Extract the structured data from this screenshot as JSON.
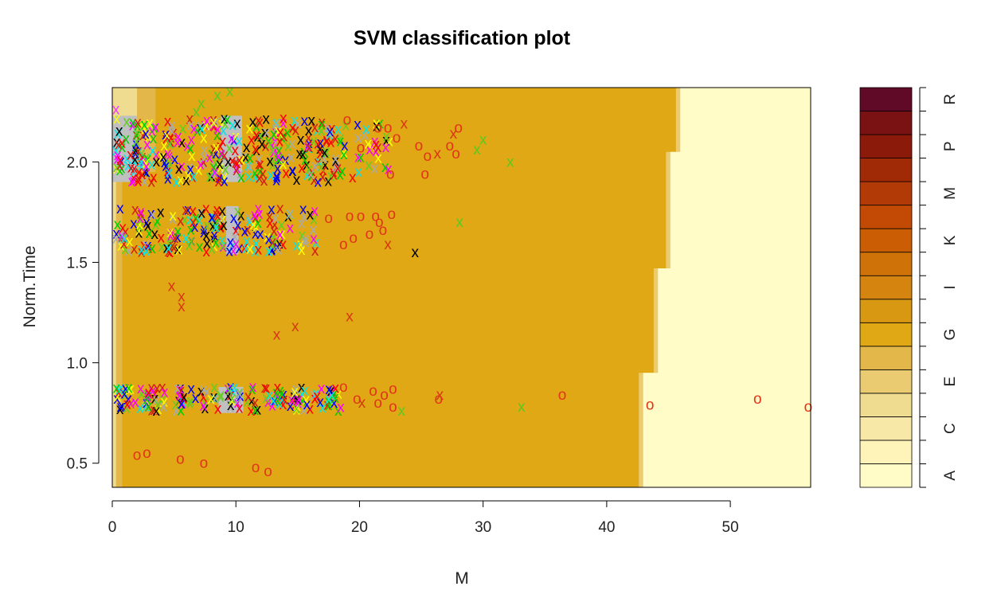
{
  "chart_data": {
    "type": "scatter",
    "title": "SVM classification plot",
    "xlabel": "M",
    "ylabel": "Norm.Time",
    "xlim": [
      0,
      56.5
    ],
    "ylim": [
      0.38,
      2.37
    ],
    "xticks": [
      "0",
      "10",
      "20",
      "30",
      "40",
      "50"
    ],
    "xtick_values": [
      0,
      10,
      20,
      30,
      40,
      50
    ],
    "yticks": [
      "0.5",
      "1.0",
      "1.5",
      "2.0"
    ],
    "ytick_values": [
      0.5,
      1.0,
      1.5,
      2.0
    ],
    "grid": false,
    "legend_position": "right",
    "legend_labels": [
      "A",
      "C",
      "E",
      "G",
      "I",
      "K",
      "M",
      "P",
      "R"
    ],
    "legend_colors": [
      "#FFFCC8",
      "#FEF3B9",
      "#F8E8A7",
      "#F0DC90",
      "#EACB72",
      "#E4B74A",
      "#DFA814",
      "#D99812",
      "#D68410",
      "#CF7309",
      "#CB5E04",
      "#C34A04",
      "#B23A06",
      "#A02A06",
      "#8C1A0A",
      "#7A1214",
      "#600A28"
    ],
    "decision_regions": {
      "colors": {
        "A": "#FFFCC8",
        "E": "#F0DC90",
        "I": "#DFA814",
        "band_light": "#EACB72",
        "band_mid": "#E4B74A",
        "gray": "#C0C0C0"
      },
      "I_to_A_boundary": [
        {
          "y": 0.38,
          "x": 42.6
        },
        {
          "y": 0.95,
          "x": 42.6
        },
        {
          "y": 0.95,
          "x": 43.8
        },
        {
          "y": 1.47,
          "x": 43.8
        },
        {
          "y": 1.47,
          "x": 44.8
        },
        {
          "y": 2.05,
          "x": 44.8
        },
        {
          "y": 2.05,
          "x": 45.6
        },
        {
          "y": 2.37,
          "x": 45.6
        }
      ],
      "left_bands": {
        "outer": [
          {
            "y": 0.38,
            "x": 0.8
          },
          {
            "y": 1.95,
            "x": 0.8
          },
          {
            "y": 1.95,
            "x": 3.5
          },
          {
            "y": 2.37,
            "x": 3.5
          }
        ],
        "inner": [
          {
            "y": 0.38,
            "x": 0.3
          },
          {
            "y": 1.95,
            "x": 0.3
          },
          {
            "y": 1.95,
            "x": 2.0
          },
          {
            "y": 2.37,
            "x": 2.0
          }
        ]
      },
      "gray_bars": [
        {
          "x0": 0.0,
          "x1": 2.0,
          "y0": 1.9,
          "y1": 2.23
        },
        {
          "x0": 8.8,
          "x1": 10.5,
          "y0": 1.9,
          "y1": 2.23
        },
        {
          "x0": 9.2,
          "x1": 10.2,
          "y0": 1.54,
          "y1": 1.78
        },
        {
          "x0": 8.6,
          "x1": 10.6,
          "y0": 0.75,
          "y1": 0.88
        }
      ]
    },
    "series": [
      {
        "name": "support_vectors",
        "symbol": "x",
        "points": [
          {
            "x": 9.5,
            "y": 2.35
          },
          {
            "x": 8.5,
            "y": 2.33
          },
          {
            "x": 7.2,
            "y": 2.29
          },
          {
            "x": 6.8,
            "y": 2.25
          },
          {
            "x": 0.3,
            "y": 2.26
          },
          {
            "x": 32.2,
            "y": 2.0
          },
          {
            "x": 28.1,
            "y": 1.7
          },
          {
            "x": 24.5,
            "y": 1.55
          },
          {
            "x": 23.4,
            "y": 0.76
          },
          {
            "x": 33.1,
            "y": 0.78
          },
          {
            "x": 4.8,
            "y": 1.38
          },
          {
            "x": 5.6,
            "y": 1.33
          },
          {
            "x": 5.6,
            "y": 1.28
          },
          {
            "x": 13.3,
            "y": 1.14
          },
          {
            "x": 14.8,
            "y": 1.18
          },
          {
            "x": 19.2,
            "y": 1.23
          },
          {
            "x": 30.0,
            "y": 2.11
          },
          {
            "x": 29.5,
            "y": 2.06
          },
          {
            "x": 27.6,
            "y": 2.14
          },
          {
            "x": 26.3,
            "y": 2.04
          },
          {
            "x": 23.6,
            "y": 2.19
          },
          {
            "x": 22.3,
            "y": 1.59
          },
          {
            "x": 26.5,
            "y": 0.84
          },
          {
            "x": 20.2,
            "y": 0.8
          }
        ]
      },
      {
        "name": "data_points",
        "symbol": "o",
        "points": [
          {
            "x": 2.0,
            "y": 0.54
          },
          {
            "x": 2.8,
            "y": 0.55
          },
          {
            "x": 5.5,
            "y": 0.52
          },
          {
            "x": 7.4,
            "y": 0.5
          },
          {
            "x": 11.6,
            "y": 0.48
          },
          {
            "x": 12.6,
            "y": 0.46
          },
          {
            "x": 36.4,
            "y": 0.84
          },
          {
            "x": 43.5,
            "y": 0.79
          },
          {
            "x": 52.2,
            "y": 0.82
          },
          {
            "x": 56.3,
            "y": 0.78
          },
          {
            "x": 19.2,
            "y": 1.73
          },
          {
            "x": 20.1,
            "y": 1.73
          },
          {
            "x": 21.3,
            "y": 1.73
          },
          {
            "x": 22.6,
            "y": 1.74
          },
          {
            "x": 18.7,
            "y": 1.59
          },
          {
            "x": 19.5,
            "y": 1.62
          },
          {
            "x": 20.8,
            "y": 1.64
          },
          {
            "x": 21.9,
            "y": 1.66
          },
          {
            "x": 21.6,
            "y": 1.7
          },
          {
            "x": 17.5,
            "y": 1.72
          },
          {
            "x": 21.5,
            "y": 2.17
          },
          {
            "x": 22.3,
            "y": 2.17
          },
          {
            "x": 23.0,
            "y": 2.12
          },
          {
            "x": 24.8,
            "y": 2.08
          },
          {
            "x": 25.5,
            "y": 2.03
          },
          {
            "x": 27.3,
            "y": 2.08
          },
          {
            "x": 27.8,
            "y": 2.04
          },
          {
            "x": 22.5,
            "y": 1.94
          },
          {
            "x": 25.3,
            "y": 1.94
          },
          {
            "x": 19.0,
            "y": 2.21
          },
          {
            "x": 28.0,
            "y": 2.17
          },
          {
            "x": 20.1,
            "y": 2.07
          },
          {
            "x": 18.7,
            "y": 0.88
          },
          {
            "x": 19.8,
            "y": 0.82
          },
          {
            "x": 21.1,
            "y": 0.86
          },
          {
            "x": 22.0,
            "y": 0.84
          },
          {
            "x": 22.7,
            "y": 0.87
          },
          {
            "x": 21.5,
            "y": 0.8
          },
          {
            "x": 22.7,
            "y": 0.78
          },
          {
            "x": 26.4,
            "y": 0.82
          }
        ]
      }
    ]
  }
}
